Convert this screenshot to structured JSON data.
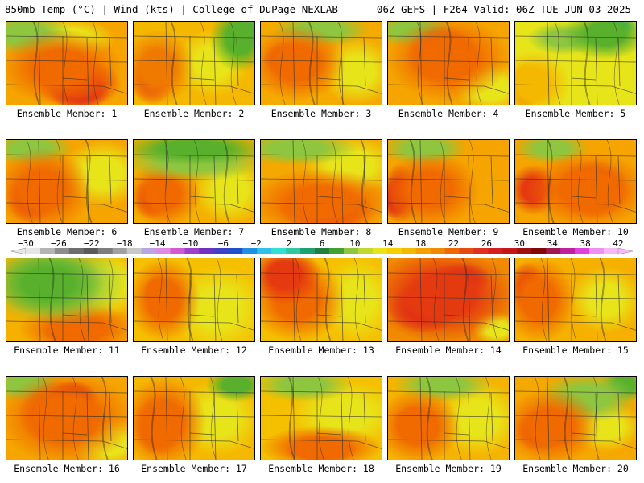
{
  "header": {
    "left": "850mb Temp (°C) | Wind (kts) | College of DuPage NEXLAB",
    "right": "06Z GEFS | F264 Valid: 06Z TUE JUN 03 2025"
  },
  "members": [
    {
      "label": "Ensemble Member: 1",
      "bg": "#f5a400",
      "blobs": [
        [
          "#f06a00",
          0.45,
          0.55,
          0.5,
          0.45
        ],
        [
          "#e53a10",
          0.6,
          0.75,
          0.35,
          0.3
        ],
        [
          "#d61e1e",
          0.6,
          0.85,
          0.25,
          0.2
        ],
        [
          "#8ec63f",
          0.15,
          0.15,
          0.4,
          0.25
        ],
        [
          "#e8e41a",
          0.5,
          0.2,
          0.4,
          0.25
        ]
      ]
    },
    {
      "label": "Ensemble Member: 2",
      "bg": "#f5b800",
      "blobs": [
        [
          "#f07a00",
          0.2,
          0.55,
          0.3,
          0.45
        ],
        [
          "#e64a10",
          0.15,
          0.7,
          0.18,
          0.3
        ],
        [
          "#58b02c",
          0.88,
          0.2,
          0.25,
          0.4
        ],
        [
          "#2bb08a",
          0.95,
          0.1,
          0.1,
          0.15
        ],
        [
          "#e8e41a",
          0.65,
          0.5,
          0.3,
          0.4
        ]
      ]
    },
    {
      "label": "Ensemble Member: 3",
      "bg": "#f5aa00",
      "blobs": [
        [
          "#f06a00",
          0.3,
          0.5,
          0.4,
          0.45
        ],
        [
          "#e53a10",
          0.2,
          0.45,
          0.18,
          0.2
        ],
        [
          "#8ec63f",
          0.5,
          0.1,
          0.4,
          0.2
        ],
        [
          "#e8e41a",
          0.8,
          0.6,
          0.3,
          0.4
        ]
      ]
    },
    {
      "label": "Ensemble Member: 4",
      "bg": "#f5a400",
      "blobs": [
        [
          "#f06a00",
          0.5,
          0.45,
          0.5,
          0.5
        ],
        [
          "#e53a10",
          0.45,
          0.4,
          0.3,
          0.35
        ],
        [
          "#d61e1e",
          0.5,
          0.35,
          0.15,
          0.2
        ],
        [
          "#8ec63f",
          0.2,
          0.1,
          0.35,
          0.2
        ],
        [
          "#e8e41a",
          0.85,
          0.8,
          0.3,
          0.3
        ]
      ]
    },
    {
      "label": "Ensemble Member: 5",
      "bg": "#e8e41a",
      "blobs": [
        [
          "#58b02c",
          0.75,
          0.15,
          0.35,
          0.3
        ],
        [
          "#2bb08a",
          0.85,
          0.05,
          0.15,
          0.12
        ],
        [
          "#f5b800",
          0.15,
          0.75,
          0.3,
          0.4
        ],
        [
          "#f06a00",
          0.08,
          0.8,
          0.12,
          0.3
        ],
        [
          "#8ec63f",
          0.4,
          0.2,
          0.3,
          0.2
        ]
      ]
    },
    {
      "label": "Ensemble Member: 6",
      "bg": "#f5a400",
      "blobs": [
        [
          "#f06a00",
          0.3,
          0.6,
          0.4,
          0.5
        ],
        [
          "#e53a10",
          0.2,
          0.7,
          0.2,
          0.3
        ],
        [
          "#8ec63f",
          0.2,
          0.1,
          0.35,
          0.2
        ],
        [
          "#e8e41a",
          0.8,
          0.4,
          0.35,
          0.4
        ]
      ]
    },
    {
      "label": "Ensemble Member: 7",
      "bg": "#f5b000",
      "blobs": [
        [
          "#58b02c",
          0.5,
          0.1,
          0.6,
          0.2
        ],
        [
          "#8ec63f",
          0.5,
          0.25,
          0.6,
          0.25
        ],
        [
          "#f06a00",
          0.25,
          0.65,
          0.3,
          0.4
        ],
        [
          "#e53a10",
          0.15,
          0.7,
          0.15,
          0.25
        ],
        [
          "#e8e41a",
          0.8,
          0.6,
          0.3,
          0.4
        ]
      ]
    },
    {
      "label": "Ensemble Member: 8",
      "bg": "#f5a800",
      "blobs": [
        [
          "#f06a00",
          0.5,
          0.75,
          0.6,
          0.4
        ],
        [
          "#e53a10",
          0.55,
          0.85,
          0.4,
          0.25
        ],
        [
          "#8ec63f",
          0.3,
          0.1,
          0.5,
          0.2
        ],
        [
          "#e8e41a",
          0.75,
          0.3,
          0.4,
          0.35
        ]
      ]
    },
    {
      "label": "Ensemble Member: 9",
      "bg": "#f5a400",
      "blobs": [
        [
          "#f06a00",
          0.35,
          0.6,
          0.4,
          0.45
        ],
        [
          "#e53a10",
          0.1,
          0.65,
          0.15,
          0.35
        ],
        [
          "#d61e1e",
          0.05,
          0.7,
          0.1,
          0.25
        ],
        [
          "#8ec63f",
          0.3,
          0.1,
          0.35,
          0.2
        ]
      ]
    },
    {
      "label": "Ensemble Member: 10",
      "bg": "#f5a400",
      "blobs": [
        [
          "#f06a00",
          0.6,
          0.6,
          0.5,
          0.45
        ],
        [
          "#e53a10",
          0.65,
          0.6,
          0.3,
          0.35
        ],
        [
          "#d61e1e",
          0.7,
          0.55,
          0.15,
          0.2
        ],
        [
          "#e53a10",
          0.15,
          0.6,
          0.2,
          0.3
        ],
        [
          "#8ec63f",
          0.3,
          0.1,
          0.3,
          0.18
        ]
      ]
    },
    {
      "label": "Ensemble Member: 11",
      "bg": "#f5b000",
      "blobs": [
        [
          "#58b02c",
          0.35,
          0.3,
          0.45,
          0.4
        ],
        [
          "#8ec63f",
          0.4,
          0.3,
          0.6,
          0.5
        ],
        [
          "#f06a00",
          0.6,
          0.85,
          0.5,
          0.3
        ],
        [
          "#e53a10",
          0.55,
          0.9,
          0.25,
          0.15
        ],
        [
          "#e8e41a",
          0.85,
          0.3,
          0.3,
          0.4
        ]
      ]
    },
    {
      "label": "Ensemble Member: 12",
      "bg": "#f5c000",
      "blobs": [
        [
          "#f06a00",
          0.25,
          0.5,
          0.3,
          0.5
        ],
        [
          "#e53a10",
          0.2,
          0.4,
          0.12,
          0.2
        ],
        [
          "#e8e41a",
          0.7,
          0.6,
          0.4,
          0.5
        ]
      ]
    },
    {
      "label": "Ensemble Member: 13",
      "bg": "#f5c000",
      "blobs": [
        [
          "#e53a10",
          0.2,
          0.2,
          0.3,
          0.35
        ],
        [
          "#f06a00",
          0.3,
          0.5,
          0.4,
          0.5
        ],
        [
          "#e8e41a",
          0.8,
          0.5,
          0.3,
          0.5
        ]
      ]
    },
    {
      "label": "Ensemble Member: 14",
      "bg": "#f08a00",
      "blobs": [
        [
          "#e53a10",
          0.45,
          0.45,
          0.6,
          0.55
        ],
        [
          "#d61e1e",
          0.3,
          0.6,
          0.3,
          0.3
        ],
        [
          "#d61e1e",
          0.6,
          0.25,
          0.25,
          0.2
        ],
        [
          "#e8e41a",
          0.9,
          0.85,
          0.2,
          0.2
        ]
      ]
    },
    {
      "label": "Ensemble Member: 15",
      "bg": "#f5b000",
      "blobs": [
        [
          "#f06a00",
          0.2,
          0.5,
          0.3,
          0.5
        ],
        [
          "#e53a10",
          0.1,
          0.35,
          0.15,
          0.3
        ],
        [
          "#e8e41a",
          0.75,
          0.5,
          0.3,
          0.4
        ]
      ]
    },
    {
      "label": "Ensemble Member: 16",
      "bg": "#f5a400",
      "blobs": [
        [
          "#f06a00",
          0.5,
          0.5,
          0.55,
          0.55
        ],
        [
          "#e53a10",
          0.45,
          0.45,
          0.35,
          0.4
        ],
        [
          "#d61e1e",
          0.55,
          0.25,
          0.2,
          0.2
        ],
        [
          "#8ec63f",
          0.15,
          0.1,
          0.3,
          0.2
        ],
        [
          "#e8e41a",
          0.85,
          0.8,
          0.3,
          0.3
        ]
      ]
    },
    {
      "label": "Ensemble Member: 17",
      "bg": "#f5b800",
      "blobs": [
        [
          "#f06a00",
          0.25,
          0.55,
          0.35,
          0.55
        ],
        [
          "#e53a10",
          0.2,
          0.6,
          0.2,
          0.35
        ],
        [
          "#58b02c",
          0.85,
          0.1,
          0.25,
          0.2
        ],
        [
          "#e8e41a",
          0.7,
          0.5,
          0.35,
          0.45
        ]
      ]
    },
    {
      "label": "Ensemble Member: 18",
      "bg": "#f5c000",
      "blobs": [
        [
          "#f06a00",
          0.5,
          0.85,
          0.5,
          0.25
        ],
        [
          "#e53a10",
          0.5,
          0.9,
          0.3,
          0.15
        ],
        [
          "#8ec63f",
          0.35,
          0.1,
          0.4,
          0.2
        ],
        [
          "#e8e41a",
          0.7,
          0.45,
          0.45,
          0.4
        ]
      ]
    },
    {
      "label": "Ensemble Member: 19",
      "bg": "#f5b400",
      "blobs": [
        [
          "#f06a00",
          0.25,
          0.6,
          0.35,
          0.45
        ],
        [
          "#e53a10",
          0.2,
          0.55,
          0.15,
          0.2
        ],
        [
          "#8ec63f",
          0.45,
          0.1,
          0.4,
          0.2
        ],
        [
          "#e8e41a",
          0.75,
          0.5,
          0.35,
          0.45
        ]
      ]
    },
    {
      "label": "Ensemble Member: 20",
      "bg": "#f5a800",
      "blobs": [
        [
          "#f06a00",
          0.3,
          0.6,
          0.4,
          0.45
        ],
        [
          "#e53a10",
          0.2,
          0.65,
          0.2,
          0.25
        ],
        [
          "#8ec63f",
          0.6,
          0.25,
          0.4,
          0.3
        ],
        [
          "#58b02c",
          0.9,
          0.1,
          0.2,
          0.2
        ],
        [
          "#e8e41a",
          0.75,
          0.6,
          0.3,
          0.3
        ]
      ]
    }
  ],
  "colorbar": {
    "ticks": [
      "−30",
      "−26",
      "−22",
      "−18",
      "−14",
      "−10",
      "−6",
      "−2",
      "2",
      "6",
      "10",
      "14",
      "18",
      "22",
      "26",
      "30",
      "34",
      "38",
      "42"
    ],
    "colors": [
      "#e6e6e6",
      "#b4b4b4",
      "#8c8c8c",
      "#6e6e6e",
      "#5a5a5a",
      "#7d7d7d",
      "#a0a0a0",
      "#c8c8c8",
      "#b9a6df",
      "#e08ae0",
      "#d25ad2",
      "#a040c8",
      "#7030c0",
      "#4040c8",
      "#2050d0",
      "#2090e0",
      "#30c0e8",
      "#30e0d0",
      "#30c8a0",
      "#20a070",
      "#208040",
      "#40a030",
      "#8ec63f",
      "#c0d830",
      "#e8e41a",
      "#f5d000",
      "#f5b800",
      "#f5a000",
      "#f08a00",
      "#f06a00",
      "#e64a10",
      "#e03020",
      "#d61e1e",
      "#c41818",
      "#a01010",
      "#800808",
      "#a01850",
      "#c020a0",
      "#e040e0",
      "#f090f0",
      "#f8b8f8"
    ]
  }
}
